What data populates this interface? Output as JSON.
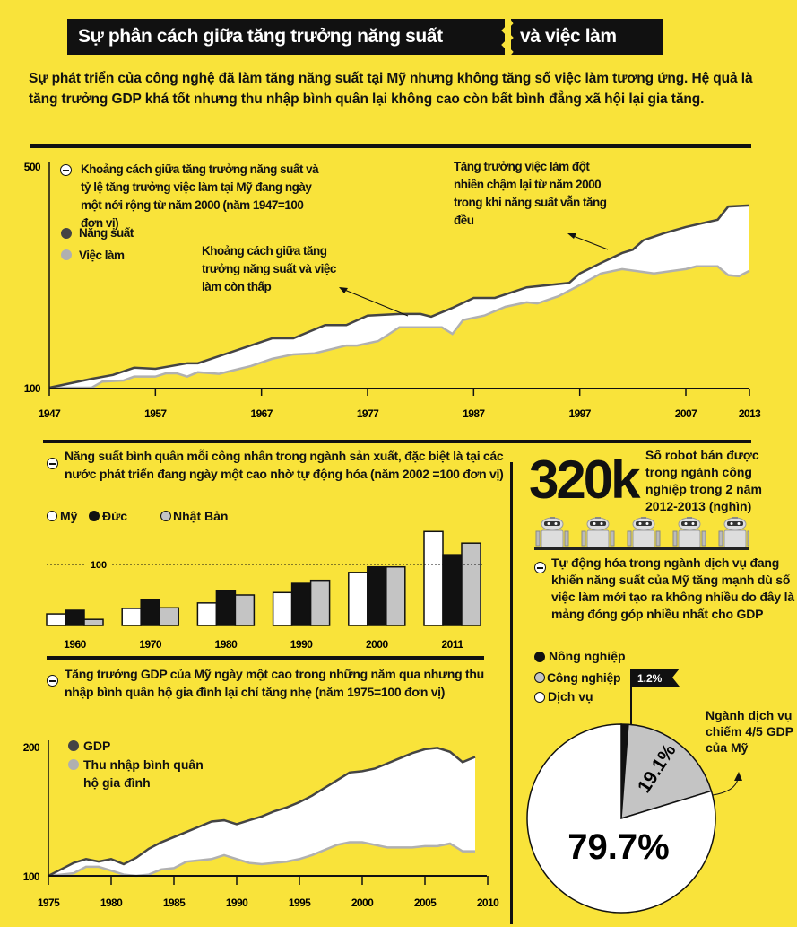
{
  "header": {
    "title_part1": "Sự phân cách giữa tăng trưởng năng suất",
    "title_part2": "và việc làm",
    "intro": "Sự phát triển của công nghệ đã làm tăng năng suất tại Mỹ nhưng không tăng số việc làm tương ứng. Hệ quả là tăng trưởng GDP khá tốt nhưng thu nhập bình quân lại không cao còn bất bình đẳng xã hội lại gia tăng."
  },
  "colors": {
    "background": "#f9e33a",
    "dark_line": "#444444",
    "light_line": "#b0b0b0",
    "fill": "#ffffff",
    "black": "#111111",
    "gray": "#c4c4c4"
  },
  "chart_data": [
    {
      "type": "area",
      "title": "Khoảng cách giữa tăng trưởng năng suất và tỷ lệ tăng trưởng việc làm tại Mỹ đang ngày một nới rộng từ năm 2000 (năm 1947=100 đơn vị)",
      "xlim": [
        1947,
        2013
      ],
      "ylim": [
        100,
        500
      ],
      "x_ticks": [
        "1947",
        "1957",
        "1967",
        "1977",
        "1987",
        "1997",
        "2007",
        "2013"
      ],
      "y_ticks": [
        "100",
        "500"
      ],
      "series": [
        {
          "name": "Năng suất",
          "color": "#444444",
          "x": [
            1947,
            1951,
            1953,
            1955,
            1957,
            1960,
            1961,
            1968,
            1970,
            1973,
            1975,
            1977,
            1980,
            1982,
            1983,
            1985,
            1987,
            1989,
            1992,
            1996,
            1997,
            1999,
            2001,
            2002,
            2003,
            2005,
            2007,
            2010,
            2011,
            2013
          ],
          "values": [
            100,
            116,
            123,
            136,
            134,
            144,
            144,
            189,
            189,
            213,
            213,
            230,
            233,
            233,
            228,
            244,
            262,
            262,
            281,
            289,
            306,
            325,
            343,
            349,
            366,
            379,
            390,
            403,
            427,
            429
          ]
        },
        {
          "name": "Việc làm",
          "color": "#b0b0b0",
          "x": [
            1947,
            1951,
            1952,
            1954,
            1955,
            1957,
            1958,
            1959,
            1960,
            1961,
            1963,
            1966,
            1968,
            1970,
            1972,
            1975,
            1976,
            1978,
            1980,
            1984,
            1985,
            1986,
            1988,
            1990,
            1992,
            1993,
            1995,
            1997,
            1999,
            2001,
            2004,
            2007,
            2008,
            2010,
            2011,
            2012,
            2013
          ],
          "values": [
            100,
            100,
            111,
            113,
            120,
            120,
            126,
            126,
            120,
            128,
            125,
            139,
            152,
            160,
            162,
            176,
            176,
            184,
            209,
            209,
            197,
            222,
            230,
            246,
            254,
            252,
            265,
            285,
            306,
            314,
            306,
            314,
            319,
            319,
            303,
            301,
            311
          ]
        }
      ],
      "annotations": [
        "Khoảng cách giữa tăng trưởng năng suất và việc làm còn thấp",
        "Tăng trưởng việc làm đột nhiên chậm lại từ năm 2000 trong khi năng suất vẫn tăng đều"
      ]
    },
    {
      "type": "bar",
      "title": "Năng suất bình quân mỗi công nhân trong ngành sản xuất, đặc biệt là tại các nước phát triển đang ngày một cao nhờ tự động hóa (năm 2002 =100 đơn vị)",
      "categories": [
        "1960",
        "1970",
        "1980",
        "1990",
        "2000",
        "2011"
      ],
      "reference_line": {
        "value": 100,
        "label": "100"
      },
      "ylim": [
        0,
        160
      ],
      "series": [
        {
          "name": "Mỹ",
          "color": "#ffffff",
          "values": [
            19,
            28,
            37,
            54,
            87,
            154
          ]
        },
        {
          "name": "Đức",
          "color": "#111111",
          "values": [
            25,
            43,
            57,
            69,
            96,
            116
          ]
        },
        {
          "name": "Nhật Bản",
          "color": "#c4c4c4",
          "values": [
            10,
            29,
            50,
            74,
            96,
            135
          ]
        }
      ]
    },
    {
      "type": "area",
      "title": "Tăng trưởng GDP của Mỹ ngày một cao trong những năm qua nhưng thu nhập bình quân hộ gia đình lại chỉ tăng nhẹ (năm 1975=100 đơn vị)",
      "xlim": [
        1975,
        2010
      ],
      "ylim": [
        100,
        200
      ],
      "x_ticks": [
        "1975",
        "1980",
        "1985",
        "1990",
        "1995",
        "2000",
        "2005",
        "2010"
      ],
      "y_ticks": [
        "100",
        "200"
      ],
      "x": [
        1975,
        1976,
        1977,
        1978,
        1979,
        1980,
        1981,
        1982,
        1983,
        1984,
        1985,
        1986,
        1987,
        1988,
        1989,
        1990,
        1991,
        1992,
        1993,
        1994,
        1995,
        1996,
        1997,
        1998,
        1999,
        2000,
        2001,
        2002,
        2003,
        2004,
        2005,
        2006,
        2007,
        2008,
        2009
      ],
      "series": [
        {
          "name": "GDP",
          "color": "#444444",
          "values": [
            100,
            105,
            110,
            113,
            111,
            113,
            109,
            114,
            121,
            126,
            130,
            134,
            138,
            142,
            143,
            140,
            143,
            146,
            150,
            153,
            157,
            162,
            168,
            174,
            180,
            181,
            183,
            187,
            191,
            195,
            198,
            199,
            196,
            188,
            192
          ]
        },
        {
          "name": "Thu nhập bình quân hộ gia đình",
          "color": "#b0b0b0",
          "values": [
            100,
            101,
            102,
            107,
            107,
            104,
            101,
            100,
            101,
            105,
            106,
            111,
            112,
            113,
            116,
            113,
            110,
            109,
            110,
            111,
            113,
            116,
            120,
            124,
            126,
            126,
            124,
            122,
            122,
            122,
            123,
            123,
            125,
            119,
            119
          ]
        }
      ]
    },
    {
      "type": "pie",
      "title": "Tự động hóa trong ngành dịch vụ đang khiến năng suất của Mỹ tăng mạnh dù số việc làm mới tạo ra không nhiều do đây là mảng đóng góp nhiều nhất cho GDP",
      "slices": [
        {
          "name": "Nông nghiệp",
          "value": 1.2,
          "label": "1.2%",
          "color": "#111111"
        },
        {
          "name": "Công nghiệp",
          "value": 19.1,
          "label": "19.1%",
          "color": "#c4c4c4"
        },
        {
          "name": "Dịch vụ",
          "value": 79.7,
          "label": "79.7%",
          "color": "#ffffff"
        }
      ],
      "annotation": "Ngành dịch vụ chiếm 4/5 GDP của Mỹ"
    }
  ],
  "robots": {
    "big_number": "320k",
    "caption": "Số robot bán được trong ngành công nghiệp trong 2 năm 2012-2013 (nghìn)",
    "count": 5,
    "icon": "robot-icon"
  }
}
